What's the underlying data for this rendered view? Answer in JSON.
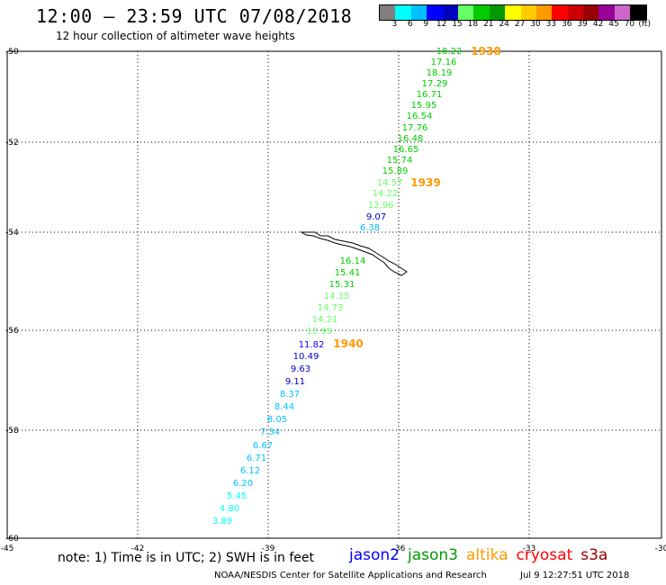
{
  "header": {
    "title": "12:00 – 23:59 UTC 07/08/2018",
    "subtitle": "12 hour collection of altimeter wave heights"
  },
  "colorbar": {
    "colors": [
      "#7f7f7f",
      "#00ffff",
      "#00bfff",
      "#0000ff",
      "#0000bf",
      "#66ff66",
      "#00cc00",
      "#009900",
      "#ffff00",
      "#ffcc00",
      "#ff9900",
      "#ff0000",
      "#cc0000",
      "#990000",
      "#990099",
      "#cc66cc",
      "#000000"
    ],
    "labels": [
      "3",
      "6",
      "9",
      "12",
      "15",
      "18",
      "21",
      "24",
      "27",
      "30",
      "33",
      "36",
      "39",
      "42",
      "45",
      "70"
    ],
    "unit": "(ft)"
  },
  "map": {
    "lon_ticks": [
      "-45",
      "-42",
      "-39",
      "-36",
      "-33",
      "-30"
    ],
    "lat_ticks": [
      "-50",
      "-52",
      "-54",
      "-56",
      "-58",
      "-60"
    ],
    "passes": [
      {
        "label": "1938",
        "color": "#ff9900"
      },
      {
        "label": "1939",
        "color": "#ff9900"
      },
      {
        "label": "1940",
        "color": "#ff9900"
      }
    ],
    "wave_heights": [
      {
        "v": "18.22",
        "color": "#00cc00"
      },
      {
        "v": "17.16",
        "color": "#00cc00"
      },
      {
        "v": "18.19",
        "color": "#00cc00"
      },
      {
        "v": "17.29",
        "color": "#00cc00"
      },
      {
        "v": "16.71",
        "color": "#00cc00"
      },
      {
        "v": "15.95",
        "color": "#00cc00"
      },
      {
        "v": "16.54",
        "color": "#00cc00"
      },
      {
        "v": "17.76",
        "color": "#00cc00"
      },
      {
        "v": "16.48",
        "color": "#00cc00"
      },
      {
        "v": "16.65",
        "color": "#00cc00"
      },
      {
        "v": "15.74",
        "color": "#00cc00"
      },
      {
        "v": "15.89",
        "color": "#00cc00"
      },
      {
        "v": "14.57",
        "color": "#66ff66"
      },
      {
        "v": "14.22",
        "color": "#66ff66"
      },
      {
        "v": "12.96",
        "color": "#66ff66"
      },
      {
        "v": "9.07",
        "color": "#0000bf"
      },
      {
        "v": "6.38",
        "color": "#00bfff"
      },
      {
        "v": "16.14",
        "color": "#00cc00"
      },
      {
        "v": "15.41",
        "color": "#00cc00"
      },
      {
        "v": "15.31",
        "color": "#00cc00"
      },
      {
        "v": "14.15",
        "color": "#66ff66"
      },
      {
        "v": "14.73",
        "color": "#66ff66"
      },
      {
        "v": "14.21",
        "color": "#66ff66"
      },
      {
        "v": "12.99",
        "color": "#66ff66"
      },
      {
        "v": "11.82",
        "color": "#0000ff"
      },
      {
        "v": "10.49",
        "color": "#0000bf"
      },
      {
        "v": "9.63",
        "color": "#0000bf"
      },
      {
        "v": "9.11",
        "color": "#0000bf"
      },
      {
        "v": "8.37",
        "color": "#00bfff"
      },
      {
        "v": "8.44",
        "color": "#00bfff"
      },
      {
        "v": "8.05",
        "color": "#00bfff"
      },
      {
        "v": "7.34",
        "color": "#00bfff"
      },
      {
        "v": "6.67",
        "color": "#00bfff"
      },
      {
        "v": "6.71",
        "color": "#00bfff"
      },
      {
        "v": "6.12",
        "color": "#00bfff"
      },
      {
        "v": "6.20",
        "color": "#00bfff"
      },
      {
        "v": "5.45",
        "color": "#00ffff"
      },
      {
        "v": "4.80",
        "color": "#00ffff"
      },
      {
        "v": "3.89",
        "color": "#00ffff"
      }
    ]
  },
  "note": "note: 1) Time is in UTC; 2) SWH is in feet",
  "legend": [
    {
      "name": "jason2",
      "color": "#0000ff"
    },
    {
      "name": "jason3",
      "color": "#009900"
    },
    {
      "name": "altika",
      "color": "#ff9900"
    },
    {
      "name": "cryosat",
      "color": "#ff0000"
    },
    {
      "name": "s3a",
      "color": "#990000"
    }
  ],
  "footer": {
    "credit": "NOAA/NESDIS Center for Satellite Applications and Research",
    "timestamp": "Jul  9 12:27:51 UTC 2018"
  }
}
